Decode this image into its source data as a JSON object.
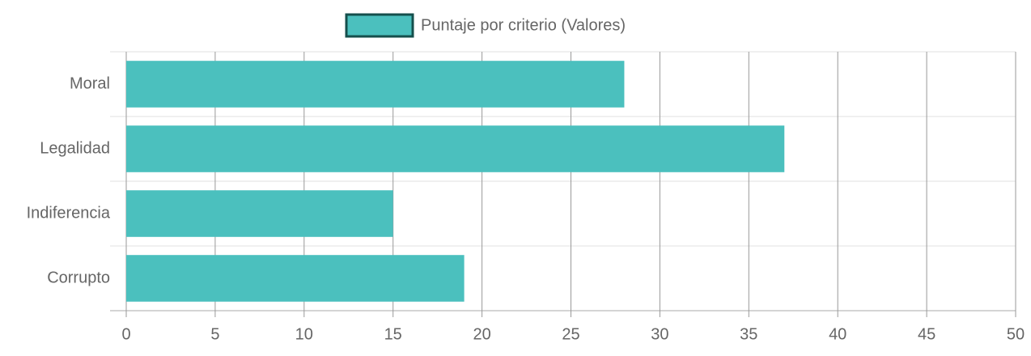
{
  "chart_data": {
    "type": "hbar",
    "legend": "top",
    "series": [
      {
        "name": "Puntaje por criterio (Valores)",
        "color": "#4bc0be",
        "border_color": "#154f4c",
        "values": [
          28,
          37,
          15,
          19
        ]
      }
    ],
    "categories": [
      "Moral",
      "Legalidad",
      "Indiferencia",
      "Corrupto"
    ],
    "xlim": [
      0,
      50
    ],
    "xticks": [
      0,
      5,
      10,
      15,
      20,
      25,
      30,
      35,
      40,
      45,
      50
    ],
    "grid": true
  }
}
